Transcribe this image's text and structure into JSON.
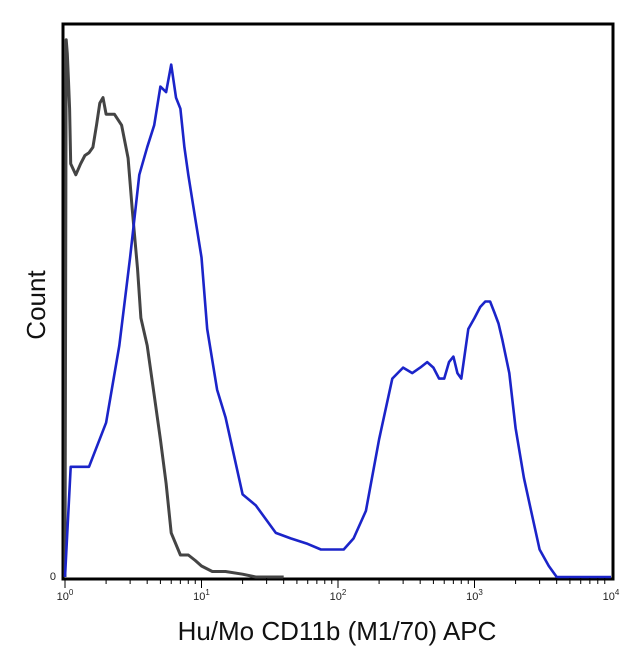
{
  "chart_data": {
    "type": "line",
    "title": "",
    "xlabel": "Hu/Mo CD11b (M1/70) APC",
    "ylabel": "Count",
    "x_scale": "log",
    "xlim": [
      1,
      10000
    ],
    "ylim": [
      0,
      100
    ],
    "grid": false,
    "legend": "none",
    "x_tick_labels": [
      {
        "value": 1,
        "base": "10",
        "exp": "0"
      },
      {
        "value": 10,
        "base": "10",
        "exp": "1"
      },
      {
        "value": 100,
        "base": "10",
        "exp": "2"
      },
      {
        "value": 1000,
        "base": "10",
        "exp": "3"
      },
      {
        "value": 10000,
        "base": "10",
        "exp": "4"
      }
    ],
    "y_tick_labels": [
      {
        "value": 0,
        "label": "0"
      }
    ],
    "series": [
      {
        "color": "#444444",
        "dash": [
          1.0,
          1.0,
          0,
          1.02,
          1.05,
          1.1,
          1.2,
          1.3,
          1.4,
          1.5,
          1.6,
          1.7,
          1.8,
          1.9,
          2.0,
          2.1,
          2.3,
          2.6,
          2.9,
          3.1,
          3.4,
          3.6,
          4.0,
          4.5,
          5.0,
          5.5,
          6.0,
          7.0,
          8.0,
          9.0,
          10.0,
          12.0,
          15.0,
          20.0,
          25.0,
          40.0
        ],
        "x": [
          1.0,
          1.02,
          1.04,
          1.06,
          1.08,
          1.1,
          1.2,
          1.3,
          1.4,
          1.5,
          1.6,
          1.7,
          1.8,
          1.9,
          2.0,
          2.1,
          2.3,
          2.6,
          2.9,
          3.1,
          3.4,
          3.6,
          4.0,
          4.5,
          5.0,
          5.5,
          6.0,
          7.0,
          8.0,
          9.0,
          10.0,
          12.0,
          15.0,
          20.0,
          25.0,
          40.0
        ],
        "y": [
          0,
          97.5,
          95,
          90,
          85,
          75,
          73,
          75,
          76.5,
          77,
          78,
          82,
          86,
          87,
          84,
          84,
          84,
          82,
          76,
          67,
          56,
          47,
          42,
          33,
          25,
          17,
          8,
          4,
          4,
          3,
          2,
          1,
          1,
          0.5,
          0,
          0
        ]
      },
      {
        "color": "#1b24c9",
        "x": [
          1.0,
          1.1,
          1.5,
          2.0,
          2.5,
          3.0,
          3.5,
          4.0,
          4.5,
          5.0,
          5.5,
          6.0,
          6.5,
          7.0,
          7.5,
          8.0,
          9.0,
          10.0,
          11.0,
          13.0,
          15.0,
          20.0,
          25.0,
          35.0,
          45.0,
          60.0,
          75.0,
          90.0,
          110.0,
          130.0,
          160.0,
          200.0,
          250.0,
          300.0,
          350.0,
          400.0,
          450.0,
          500.0,
          550.0,
          600.0,
          650.0,
          700.0,
          750.0,
          800.0,
          900.0,
          1000.0,
          1100.0,
          1200.0,
          1300.0,
          1400.0,
          1500.0,
          1600.0,
          1800.0,
          2000.0,
          2300.0,
          2600.0,
          3000.0,
          3500.0,
          4000.0,
          5000.0,
          7000.0,
          9000.0,
          10000.0
        ],
        "y": [
          0,
          20,
          20,
          28,
          42,
          58,
          73,
          78,
          82,
          89,
          88,
          93,
          87,
          85,
          78,
          73,
          65,
          58,
          45,
          34,
          29,
          15,
          13,
          8,
          7,
          6,
          5,
          5,
          5,
          7,
          12,
          25,
          36,
          38,
          37,
          38,
          39,
          38,
          36,
          36,
          39,
          40,
          37,
          36,
          45,
          47,
          49,
          50,
          50,
          48,
          46,
          43,
          37,
          27,
          18,
          12,
          5,
          2,
          0,
          0,
          0,
          0,
          0
        ]
      }
    ]
  }
}
